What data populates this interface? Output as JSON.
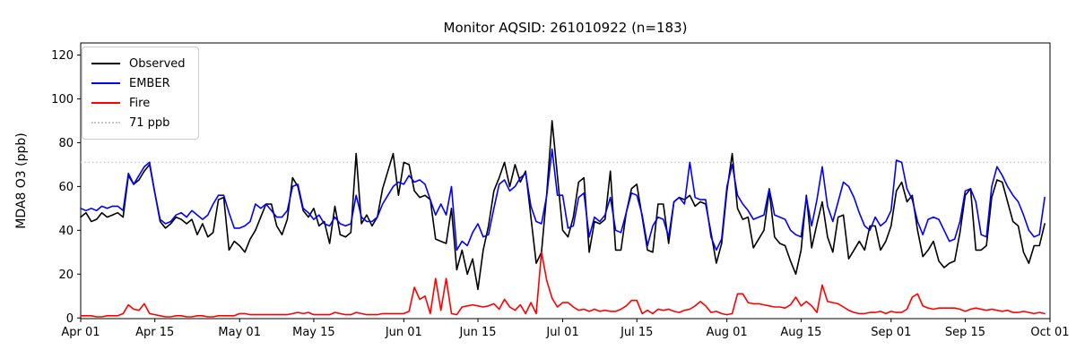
{
  "figure": {
    "title": "Monitor AQSID: 261010922 (n=183)",
    "background": "#ffffff"
  },
  "axes": {
    "ylabel": "MDA8 O3 (ppb)",
    "ylim": [
      -0.3,
      125.5
    ],
    "xlim_days": [
      0,
      183
    ],
    "y_ticks": [
      0,
      20,
      40,
      60,
      80,
      100,
      120
    ],
    "x_ticks": [
      {
        "day": 0,
        "label": "Apr 01"
      },
      {
        "day": 14,
        "label": "Apr 15"
      },
      {
        "day": 30,
        "label": "May 01"
      },
      {
        "day": 44,
        "label": "May 15"
      },
      {
        "day": 61,
        "label": "Jun 01"
      },
      {
        "day": 75,
        "label": "Jun 15"
      },
      {
        "day": 91,
        "label": "Jul 01"
      },
      {
        "day": 105,
        "label": "Jul 15"
      },
      {
        "day": 122,
        "label": "Aug 01"
      },
      {
        "day": 136,
        "label": "Aug 15"
      },
      {
        "day": 153,
        "label": "Sep 01"
      },
      {
        "day": 167,
        "label": "Sep 15"
      },
      {
        "day": 183,
        "label": "Oct 01"
      }
    ],
    "grid": false,
    "spine_color": "#000000"
  },
  "legend": {
    "position": "upper-left",
    "items": [
      {
        "label": "Observed",
        "color": "#000000",
        "style": "solid"
      },
      {
        "label": "EMBER",
        "color": "#0000ff",
        "style": "solid"
      },
      {
        "label": "Fire",
        "color": "#ff0000",
        "style": "solid"
      },
      {
        "label": "71 ppb",
        "color": "#c9c9c9",
        "style": "dotted"
      }
    ]
  },
  "chart_data": {
    "type": "line",
    "title": "Monitor AQSID: 261010922 (n=183)",
    "xlabel": "",
    "ylabel": "MDA8 O3 (ppb)",
    "x_start": "Apr 01",
    "x_end": "Sep 30",
    "x_step_days": 1,
    "n_points": 183,
    "legend_position": "upper left",
    "threshold": {
      "label": "71 ppb",
      "value": 71,
      "color": "#c9c9c9",
      "style": "dotted"
    },
    "series": [
      {
        "name": "Observed",
        "color": "#000000",
        "values": [
          46,
          48,
          44,
          45,
          48,
          46,
          47,
          48,
          46,
          65,
          61,
          63,
          67,
          70,
          57,
          44,
          41,
          43,
          46,
          45,
          43,
          45,
          38,
          43,
          37,
          39,
          54,
          55,
          31,
          35,
          33,
          30,
          36,
          40,
          46,
          52,
          52,
          42,
          38,
          45,
          64,
          60,
          49,
          46,
          50,
          42,
          44,
          34,
          51,
          38,
          37,
          39,
          75,
          43,
          47,
          42,
          46,
          59,
          67,
          75,
          56,
          71,
          70,
          58,
          55,
          56,
          54,
          36,
          35,
          34,
          50,
          22,
          31,
          20,
          27,
          13,
          31,
          42,
          58,
          64,
          71,
          60,
          70,
          62,
          67,
          46,
          25,
          30,
          57,
          90,
          65,
          40,
          37,
          46,
          62,
          64,
          30,
          44,
          43,
          45,
          67,
          31,
          31,
          48,
          59,
          61,
          46,
          31,
          30,
          52,
          52,
          34,
          53,
          55,
          54,
          56,
          51,
          53,
          52,
          39,
          25,
          34,
          58,
          75,
          50,
          45,
          46,
          32,
          36,
          40,
          58,
          37,
          34,
          33,
          26,
          20,
          31,
          56,
          32,
          43,
          53,
          37,
          30,
          46,
          47,
          27,
          31,
          35,
          31,
          42,
          42,
          31,
          35,
          42,
          58,
          62,
          53,
          56,
          40,
          28,
          31,
          35,
          26,
          23,
          25,
          26,
          39,
          56,
          59,
          31,
          31,
          33,
          55,
          63,
          62,
          53,
          44,
          42,
          30,
          25,
          33,
          33,
          43
        ]
      },
      {
        "name": "EMBER",
        "color": "#0000ff",
        "values": [
          50,
          49,
          50,
          49,
          51,
          50,
          51,
          51,
          49,
          66,
          61,
          65,
          69,
          71,
          57,
          45,
          43,
          44,
          47,
          48,
          46,
          49,
          47,
          45,
          47,
          52,
          56,
          56,
          48,
          41,
          41,
          42,
          44,
          52,
          50,
          52,
          49,
          46,
          46,
          49,
          60,
          61,
          50,
          48,
          45,
          47,
          43,
          42,
          46,
          43,
          42,
          43,
          56,
          46,
          44,
          44,
          46,
          52,
          56,
          60,
          62,
          61,
          65,
          62,
          63,
          61,
          54,
          47,
          52,
          47,
          60,
          31,
          35,
          33,
          39,
          43,
          37,
          38,
          50,
          61,
          63,
          58,
          60,
          64,
          66,
          51,
          44,
          43,
          56,
          77,
          56,
          56,
          41,
          42,
          55,
          57,
          37,
          46,
          44,
          47,
          55,
          40,
          39,
          48,
          57,
          56,
          47,
          33,
          42,
          46,
          45,
          37,
          53,
          55,
          52,
          71,
          55,
          54,
          54,
          37,
          31,
          36,
          60,
          70,
          56,
          52,
          49,
          45,
          46,
          47,
          59,
          47,
          46,
          45,
          40,
          38,
          37,
          55,
          42,
          54,
          69,
          51,
          44,
          53,
          62,
          60,
          55,
          48,
          42,
          40,
          46,
          42,
          44,
          49,
          72,
          71,
          59,
          54,
          44,
          38,
          45,
          46,
          45,
          40,
          35,
          36,
          44,
          58,
          59,
          53,
          38,
          37,
          60,
          69,
          65,
          60,
          56,
          53,
          47,
          40,
          37,
          38,
          55
        ]
      },
      {
        "name": "Fire",
        "color": "#ff0000",
        "values": [
          1,
          1,
          1,
          0.5,
          0.5,
          1,
          1,
          1,
          2,
          6,
          4,
          3.5,
          6.5,
          2,
          1.5,
          1,
          0.5,
          0.5,
          1,
          1,
          0.5,
          0.5,
          1,
          1,
          0.5,
          0.5,
          1,
          1,
          1,
          1,
          2,
          2,
          1.5,
          1.5,
          1.5,
          1.5,
          1.5,
          1.5,
          1.5,
          1.5,
          2,
          2.5,
          2,
          2.5,
          1.5,
          1.5,
          1.5,
          1.5,
          2.5,
          2,
          1.5,
          1.5,
          2.5,
          2,
          1.5,
          1.5,
          1.5,
          2,
          2,
          2,
          2,
          2,
          3,
          14,
          8.5,
          10,
          2,
          18,
          3.5,
          18,
          2,
          1.5,
          5,
          5.5,
          6,
          5.5,
          5,
          5.5,
          6.5,
          4,
          8.5,
          5,
          3.5,
          6,
          2,
          7,
          2,
          30,
          17,
          9,
          5,
          7,
          7,
          5,
          3.5,
          4,
          3,
          4,
          3,
          3.5,
          3,
          3,
          4,
          5.5,
          8,
          8,
          2,
          3.5,
          2,
          4,
          3.5,
          4,
          3,
          2.5,
          3.5,
          4,
          5.5,
          7.5,
          5.5,
          2.5,
          3,
          2,
          1.5,
          2,
          11,
          11,
          7,
          6.5,
          6.5,
          6,
          5.5,
          5,
          5,
          4.5,
          6,
          9.5,
          5.5,
          7.5,
          5.5,
          2.5,
          15,
          7.5,
          7,
          6.5,
          5,
          3.5,
          2.5,
          2,
          2,
          2.5,
          2.5,
          3,
          2,
          3,
          2.5,
          2.5,
          4,
          9.5,
          11,
          5.5,
          4.5,
          4,
          4.5,
          4.5,
          4.5,
          4.5,
          4,
          3,
          4,
          4.5,
          4,
          3.5,
          4,
          3.5,
          3,
          3.5,
          2.5,
          2.5,
          3,
          2.5,
          2,
          2.5,
          2
        ]
      }
    ]
  }
}
